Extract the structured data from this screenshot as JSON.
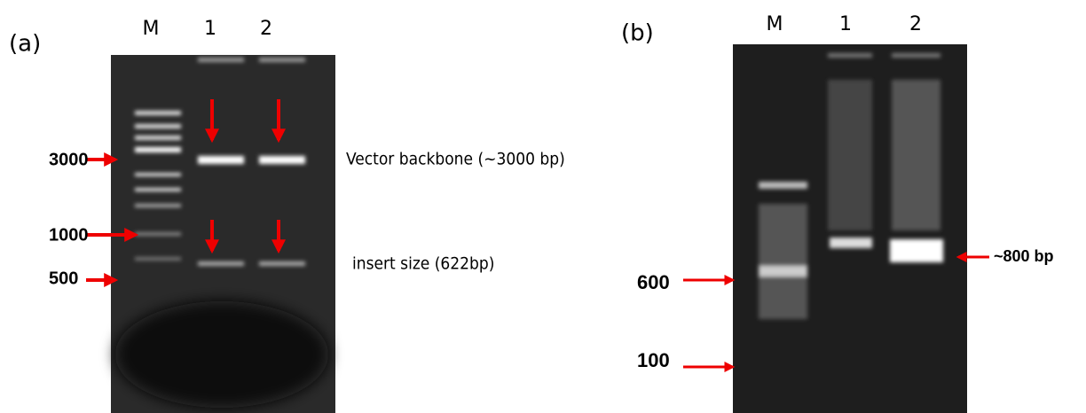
{
  "panels": [
    {
      "label": "(a)",
      "lanes": [
        "M",
        "1",
        "2"
      ],
      "markers": [
        "3000",
        "1000",
        "500"
      ],
      "annotations": [
        "Vector backbone (~3000 bp)",
        "insert size (622bp)"
      ]
    },
    {
      "label": "(b)",
      "lanes": [
        "M",
        "1",
        "2"
      ],
      "markers": [
        "600",
        "100"
      ],
      "annotations": [
        "~800 bp"
      ]
    }
  ]
}
